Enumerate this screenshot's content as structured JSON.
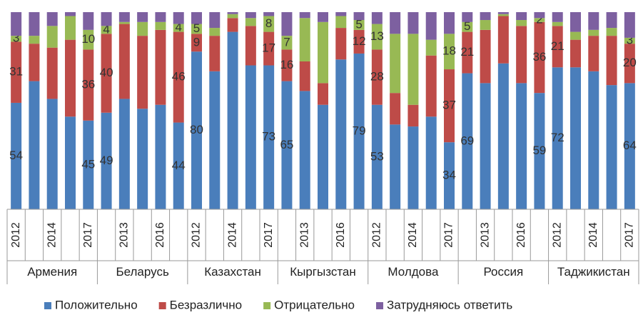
{
  "chart_data": {
    "type": "stacked_bar",
    "categories": [
      "2012",
      null,
      "2014",
      null,
      "2017",
      null,
      "2013",
      null,
      "2016",
      null,
      "2012",
      null,
      "2014",
      null,
      "2017",
      null,
      "2013",
      null,
      "2016",
      null,
      "2012",
      null,
      "2014",
      null,
      "2017",
      null,
      "2013",
      null,
      "2016",
      null,
      "2012",
      null,
      "2014",
      null,
      "2017"
    ],
    "groups": [
      "Армения",
      "Беларусь",
      "Казахстан",
      "Кыргызстан",
      "Молдова",
      "Россия",
      "Таджикистан"
    ],
    "ylim": [
      0,
      100
    ],
    "legend": "bottom",
    "series": [
      {
        "name": "Положительно",
        "color": "#4a7ebb",
        "values": [
          54,
          65,
          56,
          47,
          45,
          49,
          56,
          51,
          53,
          44,
          80,
          70,
          90,
          73,
          73,
          65,
          60,
          53,
          76,
          79,
          53,
          43,
          42,
          47,
          34,
          69,
          64,
          74,
          64,
          59,
          72,
          72,
          70,
          63,
          64
        ],
        "value_labels": [
          "54",
          null,
          null,
          null,
          "45",
          "49",
          null,
          null,
          null,
          "44",
          "80",
          null,
          null,
          null,
          "73",
          "65",
          null,
          null,
          null,
          "79",
          "53",
          null,
          null,
          null,
          "34",
          "69",
          null,
          null,
          null,
          "59",
          "72",
          null,
          null,
          null,
          "64"
        ]
      },
      {
        "name": "Безразлично",
        "color": "#be4b48",
        "values": [
          31,
          19,
          26,
          39,
          36,
          40,
          38,
          37,
          38,
          46,
          9,
          18,
          7,
          20,
          17,
          16,
          15,
          11,
          16,
          12,
          28,
          16,
          11,
          31,
          37,
          21,
          27,
          24,
          29,
          36,
          21,
          14,
          18,
          25,
          20
        ],
        "value_labels": [
          "31",
          null,
          null,
          null,
          "36",
          "40",
          null,
          null,
          null,
          "46",
          "9",
          null,
          null,
          null,
          "17",
          "16",
          null,
          null,
          null,
          "12",
          "28",
          null,
          null,
          null,
          "37",
          "21",
          null,
          null,
          null,
          "36",
          "21",
          null,
          null,
          null,
          "20"
        ]
      },
      {
        "name": "Отрицательно",
        "color": "#98b954",
        "values": [
          3,
          4,
          11,
          12,
          10,
          4,
          1,
          7,
          4,
          4,
          5,
          4,
          2,
          4,
          8,
          7,
          22,
          31,
          6,
          5,
          13,
          30,
          36,
          8,
          18,
          5,
          5,
          1,
          3,
          2,
          2,
          4,
          3,
          4,
          3
        ],
        "value_labels": [
          "3",
          null,
          null,
          null,
          "10",
          "4",
          null,
          null,
          null,
          "4",
          "5",
          null,
          null,
          null,
          "8",
          "7",
          null,
          null,
          null,
          "5",
          "13",
          null,
          null,
          null,
          "18",
          "5",
          null,
          null,
          null,
          "2",
          null,
          null,
          null,
          null,
          "3"
        ]
      },
      {
        "name": "Затрудняюсь ответить",
        "color": "#7d60a0",
        "values": [
          12,
          12,
          7,
          2,
          9,
          7,
          5,
          5,
          5,
          6,
          6,
          8,
          1,
          3,
          2,
          12,
          3,
          5,
          2,
          4,
          6,
          11,
          11,
          14,
          11,
          5,
          4,
          1,
          4,
          3,
          5,
          10,
          9,
          8,
          13
        ]
      }
    ]
  }
}
